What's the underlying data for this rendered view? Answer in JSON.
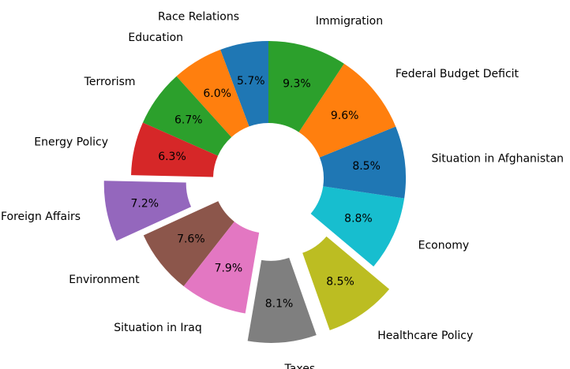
{
  "chart_data": {
    "type": "pie",
    "donut": true,
    "start_angle_deg": 90,
    "direction": "counterclockwise",
    "categories": [
      "Race Relations",
      "Education",
      "Terrorism",
      "Energy Policy",
      "Foreign Affairs",
      "Environment",
      "Situation in Iraq",
      "Taxes",
      "Healthcare Policy",
      "Economy",
      "Situation in Afghanistan",
      "Federal Budget Deficit",
      "Immigration"
    ],
    "values": [
      5.7,
      6.0,
      6.7,
      6.3,
      7.2,
      7.6,
      7.9,
      8.1,
      8.5,
      8.8,
      8.5,
      9.6,
      9.3
    ],
    "percent_labels": [
      "5.7%",
      "6.0%",
      "6.7%",
      "6.3%",
      "7.2%",
      "7.6%",
      "7.9%",
      "8.1%",
      "8.5%",
      "8.8%",
      "8.5%",
      "9.6%",
      "9.3%"
    ],
    "exploded": [
      false,
      false,
      false,
      false,
      true,
      false,
      false,
      true,
      true,
      false,
      false,
      false,
      false
    ],
    "colors": [
      "#1f77b4",
      "#ff7f0e",
      "#2ca02c",
      "#d62728",
      "#9467bd",
      "#8c564b",
      "#e377c2",
      "#7f7f7f",
      "#bcbd22",
      "#17becf",
      "#1f77b4",
      "#ff7f0e",
      "#2ca02c"
    ]
  }
}
